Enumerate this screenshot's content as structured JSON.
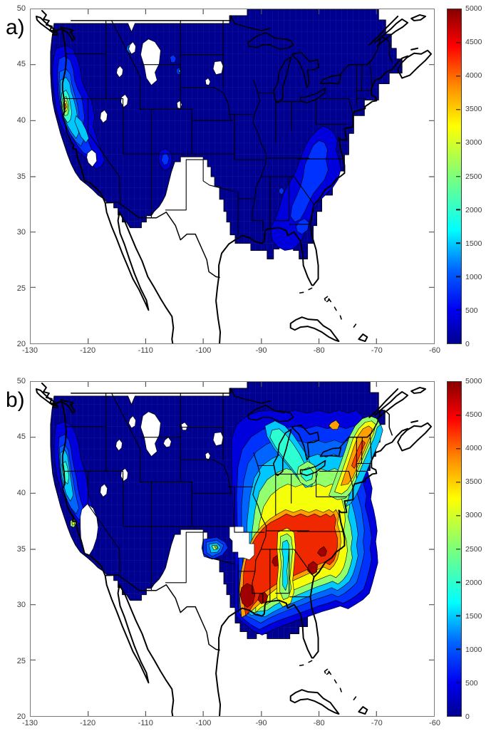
{
  "figure": {
    "panels": [
      {
        "id": "a",
        "label": "a)"
      },
      {
        "id": "b",
        "label": "b)"
      }
    ],
    "x_ticks": [
      "-130",
      "-120",
      "-110",
      "-100",
      "-90",
      "-80",
      "-70",
      "-60"
    ],
    "y_ticks": [
      "50",
      "45",
      "40",
      "35",
      "30",
      "25",
      "20"
    ],
    "colorbar_ticks": [
      "0",
      "500",
      "1000",
      "1500",
      "2000",
      "2500",
      "3000",
      "3500",
      "4000",
      "4500",
      "5000"
    ],
    "colors": {
      "jet_stops": [
        "#00008F",
        "#0000FF",
        "#0064FF",
        "#00FFFF",
        "#80FF80",
        "#FFFF00",
        "#FF8000",
        "#FF0000",
        "#800000"
      ],
      "no_data": "#FFFFFF",
      "outline": "#000000",
      "axis_frame": "#7A7A7A"
    }
  },
  "chart_data": [
    {
      "type": "heatmap",
      "subtype": "filled_contour_map",
      "panel": "a)",
      "x_axis": {
        "range": [
          -130,
          -60
        ],
        "ticks": [
          -130,
          -120,
          -110,
          -100,
          -90,
          -80,
          -70,
          -60
        ]
      },
      "y_axis": {
        "range": [
          20,
          50
        ],
        "ticks": [
          20,
          25,
          30,
          35,
          40,
          45,
          50
        ]
      },
      "colorbar": {
        "range": [
          0,
          5000
        ],
        "tick_step": 500,
        "contour_interval": 250,
        "colormap": "jet",
        "position": "right"
      },
      "grid": false,
      "legend_position": "right-colorbar",
      "regions": [
        {
          "area": "most of western/central US, southern Canada and northeastern US",
          "approx_value": "0-500"
        },
        {
          "area": "northern California coastal hotspot (~41N, -123.5W)",
          "approx_value": "3750-4000 peak (orange core), rings 500-3500"
        },
        {
          "area": "California coast ranges and Sierra foothills",
          "approx_value": "1000-2500"
        },
        {
          "area": "southwest Montana spot (~46.4N, -112.4W)",
          "approx_value": "1000-1750"
        },
        {
          "area": "southeastern US (Virginia/Carolinas/Georgia)",
          "approx_value": "500-1000"
        },
        {
          "area": "small bumps NE Wyoming / SE Montana and Colorado Rockies",
          "approx_value": "500-1000"
        },
        {
          "area": "central plains, Texas, interior Southwest, central Montana",
          "approx_value": "no data (white)"
        }
      ]
    },
    {
      "type": "heatmap",
      "subtype": "filled_contour_map",
      "panel": "b)",
      "x_axis": {
        "range": [
          -130,
          -60
        ],
        "ticks": [
          -130,
          -120,
          -110,
          -100,
          -90,
          -80,
          -70,
          -60
        ]
      },
      "y_axis": {
        "range": [
          20,
          50
        ],
        "ticks": [
          20,
          25,
          30,
          35,
          40,
          45,
          50
        ]
      },
      "colorbar": {
        "range": [
          0,
          5000
        ],
        "tick_step": 500,
        "contour_interval": 250,
        "colormap": "jet",
        "position": "right"
      },
      "grid": false,
      "legend_position": "right-colorbar",
      "regions": [
        {
          "area": "western US, northern plains and upper Midwest",
          "approx_value": "0-500"
        },
        {
          "area": "California coast band",
          "approx_value": "1000-2250, small 2500-3000 spot near SF Bay"
        },
        {
          "area": "southeastern US core (Louisiana-Mississippi-Alabama-Carolinas)",
          "approx_value": "4250-5000 with dark-red pockets ~5000"
        },
        {
          "area": "mid-Atlantic / Northeast corridor to Maine",
          "approx_value": "2500-4250 (orange/yellow), red pocket ~NY (~4250)"
        },
        {
          "area": "Tennessee-Georgia cool tongue inside hot core",
          "approx_value": "1750-2750 (cyan/green)"
        },
        {
          "area": "Great Lakes to Ohio diagonal cool band",
          "approx_value": "1000-2750"
        },
        {
          "area": "Oklahoma gradient band",
          "approx_value": "750-3500"
        },
        {
          "area": "Ottawa-area orange pocket (~45.9N, -77W)",
          "approx_value": "3500-3750"
        },
        {
          "area": "central plains / Texas and S Missouri-N Arkansas hole",
          "approx_value": "no data (white)"
        }
      ]
    }
  ]
}
